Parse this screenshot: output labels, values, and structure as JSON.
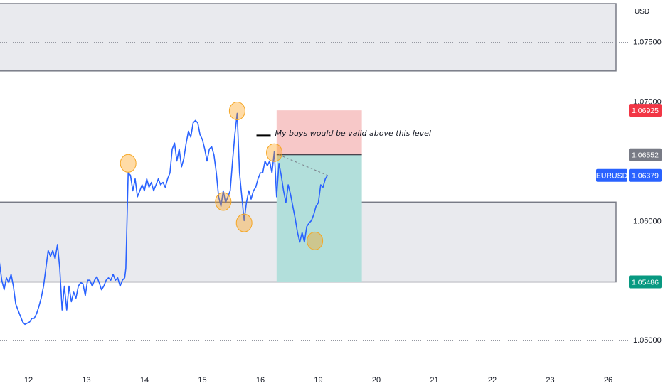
{
  "chart_data": {
    "type": "line",
    "symbol": "EURUSD",
    "currency": "USD",
    "ylim": [
      1.0475,
      1.0785
    ],
    "xlim": [
      -0.5,
      11.5
    ],
    "x_ticks": [
      {
        "pos": 0,
        "label": "12"
      },
      {
        "pos": 1,
        "label": "13"
      },
      {
        "pos": 2,
        "label": "14"
      },
      {
        "pos": 3,
        "label": "15"
      },
      {
        "pos": 4,
        "label": "16"
      },
      {
        "pos": 5,
        "label": "19"
      },
      {
        "pos": 6,
        "label": "20"
      },
      {
        "pos": 7,
        "label": "21"
      },
      {
        "pos": 8,
        "label": "22"
      },
      {
        "pos": 9,
        "label": "23"
      },
      {
        "pos": 10,
        "label": "26"
      }
    ],
    "y_ticks": [
      {
        "value": 1.075,
        "label": "1.07500"
      },
      {
        "value": 1.07,
        "label": "1.07000"
      },
      {
        "value": 1.06,
        "label": "1.06000"
      },
      {
        "value": 1.05,
        "label": "1.05000"
      }
    ],
    "gridlines": [
      1.075,
      1.0638,
      1.058,
      1.05
    ],
    "series": [
      {
        "color": "#2962ff",
        "points": [
          [
            -0.5,
            1.0565
          ],
          [
            -0.46,
            1.055
          ],
          [
            -0.42,
            1.0542
          ],
          [
            -0.38,
            1.0552
          ],
          [
            -0.34,
            1.0548
          ],
          [
            -0.3,
            1.0555
          ],
          [
            -0.26,
            1.0545
          ],
          [
            -0.22,
            1.053
          ],
          [
            -0.18,
            1.0525
          ],
          [
            -0.14,
            1.052
          ],
          [
            -0.1,
            1.0515
          ],
          [
            -0.06,
            1.0513
          ],
          [
            -0.02,
            1.0514
          ],
          [
            0.02,
            1.0515
          ],
          [
            0.06,
            1.0518
          ],
          [
            0.1,
            1.0518
          ],
          [
            0.14,
            1.0522
          ],
          [
            0.18,
            1.0528
          ],
          [
            0.22,
            1.0535
          ],
          [
            0.26,
            1.0545
          ],
          [
            0.3,
            1.056
          ],
          [
            0.34,
            1.0575
          ],
          [
            0.38,
            1.057
          ],
          [
            0.42,
            1.0575
          ],
          [
            0.46,
            1.0568
          ],
          [
            0.5,
            1.058
          ],
          [
            0.54,
            1.056
          ],
          [
            0.58,
            1.0525
          ],
          [
            0.62,
            1.0545
          ],
          [
            0.66,
            1.0525
          ],
          [
            0.7,
            1.0545
          ],
          [
            0.74,
            1.0532
          ],
          [
            0.78,
            1.054
          ],
          [
            0.82,
            1.0535
          ],
          [
            0.86,
            1.0545
          ],
          [
            0.9,
            1.0548
          ],
          [
            0.94,
            1.0547
          ],
          [
            0.98,
            1.0537
          ],
          [
            1.02,
            1.055
          ],
          [
            1.06,
            1.055
          ],
          [
            1.1,
            1.0545
          ],
          [
            1.14,
            1.055
          ],
          [
            1.18,
            1.0553
          ],
          [
            1.22,
            1.0548
          ],
          [
            1.26,
            1.0542
          ],
          [
            1.3,
            1.0545
          ],
          [
            1.34,
            1.055
          ],
          [
            1.38,
            1.0552
          ],
          [
            1.42,
            1.055
          ],
          [
            1.46,
            1.0555
          ],
          [
            1.5,
            1.055
          ],
          [
            1.54,
            1.0552
          ],
          [
            1.58,
            1.0545
          ],
          [
            1.62,
            1.055
          ],
          [
            1.66,
            1.0552
          ],
          [
            1.68,
            1.056
          ],
          [
            1.72,
            1.064
          ],
          [
            1.76,
            1.0638
          ],
          [
            1.8,
            1.0625
          ],
          [
            1.84,
            1.0635
          ],
          [
            1.88,
            1.062
          ],
          [
            1.92,
            1.0625
          ],
          [
            1.96,
            1.063
          ],
          [
            2.0,
            1.0625
          ],
          [
            2.04,
            1.0635
          ],
          [
            2.08,
            1.0628
          ],
          [
            2.12,
            1.0632
          ],
          [
            2.16,
            1.0625
          ],
          [
            2.2,
            1.063
          ],
          [
            2.24,
            1.0635
          ],
          [
            2.28,
            1.063
          ],
          [
            2.32,
            1.0632
          ],
          [
            2.36,
            1.0628
          ],
          [
            2.4,
            1.0635
          ],
          [
            2.44,
            1.064
          ],
          [
            2.48,
            1.066
          ],
          [
            2.52,
            1.0665
          ],
          [
            2.56,
            1.065
          ],
          [
            2.6,
            1.066
          ],
          [
            2.64,
            1.0645
          ],
          [
            2.68,
            1.0652
          ],
          [
            2.72,
            1.0665
          ],
          [
            2.76,
            1.0675
          ],
          [
            2.8,
            1.067
          ],
          [
            2.84,
            1.0682
          ],
          [
            2.88,
            1.0684
          ],
          [
            2.92,
            1.0682
          ],
          [
            2.96,
            1.0672
          ],
          [
            3.0,
            1.0668
          ],
          [
            3.04,
            1.066
          ],
          [
            3.08,
            1.065
          ],
          [
            3.12,
            1.066
          ],
          [
            3.16,
            1.0662
          ],
          [
            3.2,
            1.0655
          ],
          [
            3.24,
            1.064
          ],
          [
            3.28,
            1.062
          ],
          [
            3.32,
            1.0612
          ],
          [
            3.36,
            1.0625
          ],
          [
            3.4,
            1.0615
          ],
          [
            3.44,
            1.062
          ],
          [
            3.48,
            1.0625
          ],
          [
            3.52,
            1.065
          ],
          [
            3.56,
            1.0672
          ],
          [
            3.6,
            1.069
          ],
          [
            3.64,
            1.064
          ],
          [
            3.68,
            1.062
          ],
          [
            3.72,
            1.06
          ],
          [
            3.76,
            1.0615
          ],
          [
            3.8,
            1.0625
          ],
          [
            3.84,
            1.0618
          ],
          [
            3.88,
            1.0625
          ],
          [
            3.92,
            1.0628
          ],
          [
            3.96,
            1.0635
          ],
          [
            4.0,
            1.064
          ],
          [
            4.04,
            1.064
          ],
          [
            4.08,
            1.065
          ],
          [
            4.12,
            1.0646
          ],
          [
            4.16,
            1.065
          ],
          [
            4.2,
            1.064
          ],
          [
            4.24,
            1.0658
          ],
          [
            4.28,
            1.062
          ],
          [
            4.32,
            1.0648
          ],
          [
            4.36,
            1.0638
          ],
          [
            4.4,
            1.0625
          ],
          [
            4.44,
            1.0615
          ],
          [
            4.48,
            1.063
          ],
          [
            4.52,
            1.0622
          ],
          [
            4.56,
            1.0612
          ],
          [
            4.6,
            1.0602
          ],
          [
            4.64,
            1.059
          ],
          [
            4.68,
            1.0582
          ],
          [
            4.72,
            1.059
          ],
          [
            4.76,
            1.0582
          ],
          [
            4.8,
            1.0595
          ],
          [
            4.84,
            1.0598
          ],
          [
            4.88,
            1.06
          ],
          [
            4.92,
            1.0605
          ],
          [
            4.96,
            1.0612
          ],
          [
            5.0,
            1.0615
          ],
          [
            5.04,
            1.063
          ],
          [
            5.08,
            1.0628
          ],
          [
            5.12,
            1.0635
          ],
          [
            5.16,
            1.0638
          ]
        ]
      }
    ],
    "zones": [
      {
        "name": "supply-zone",
        "x_from": -0.5,
        "x_to": 10.5,
        "y_from": 1.07255,
        "y_to": 1.0782,
        "fill": "#e9eaee",
        "border": "#787b86"
      },
      {
        "name": "demand-zone",
        "x_from": -0.5,
        "x_to": 10.5,
        "y_from": 1.05486,
        "y_to": 1.06155,
        "fill": "#e9eaee",
        "border": "#787b86"
      }
    ],
    "trade": {
      "x_from": 4.28,
      "x_to": 5.75,
      "entry": 1.06552,
      "stop": 1.06925,
      "target": 1.05486,
      "stop_fill": "#f7c8c8",
      "target_fill": "#b2dfdb"
    },
    "dotted_lines": [
      {
        "x1": 4.32,
        "y1": 1.06552,
        "x2": 5.16,
        "y2": 1.06379
      }
    ],
    "highlight_circles": [
      {
        "x": 1.72,
        "y": 1.0648
      },
      {
        "x": 3.6,
        "y": 1.0692
      },
      {
        "x": 3.36,
        "y": 1.0616
      },
      {
        "x": 3.72,
        "y": 1.0598
      },
      {
        "x": 4.24,
        "y": 1.0657
      },
      {
        "x": 4.94,
        "y": 1.0583
      }
    ],
    "annotation": {
      "text": "My buys would be valid above this level",
      "x": 4.35,
      "y": 1.0673
    },
    "price_tags": [
      {
        "label": "",
        "value": "1.06925",
        "price": 1.06925,
        "color": "#f23645"
      },
      {
        "label": "",
        "value": "1.06552",
        "price": 1.06552,
        "color": "#787b86"
      },
      {
        "label": "EURUSD",
        "value": "1.06379",
        "price": 1.06379,
        "color": "#2962ff"
      },
      {
        "label": "",
        "value": "1.05486",
        "price": 1.05486,
        "color": "#089981"
      }
    ]
  },
  "colors": {
    "grid": "#9598a1",
    "circle_fill": "rgba(255,152,0,0.35)",
    "circle_stroke": "#f5a623"
  }
}
